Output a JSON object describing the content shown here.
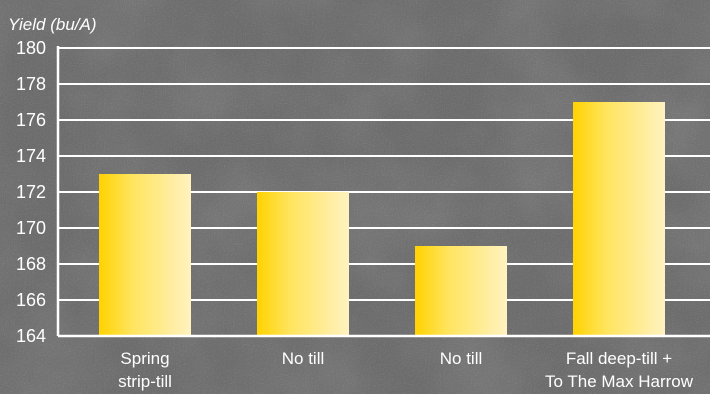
{
  "chart_data": {
    "type": "bar",
    "ylabel": "Yield (bu/A)",
    "ylim": [
      164,
      180
    ],
    "yticks": [
      164,
      166,
      168,
      170,
      172,
      174,
      176,
      178,
      180
    ],
    "categories": [
      [
        "Spring",
        "strip-till"
      ],
      [
        "No till"
      ],
      [
        "No till"
      ],
      [
        "Fall deep-till +",
        "To The Max Harrow"
      ]
    ],
    "values": [
      173,
      172,
      169,
      177
    ],
    "grid": true,
    "bar_colors": {
      "dark": "#ffd200",
      "mid": "#ffe45c",
      "light": "#fff2c0"
    },
    "gridline_color": "#ffffff",
    "text_color": "#ffffff"
  }
}
